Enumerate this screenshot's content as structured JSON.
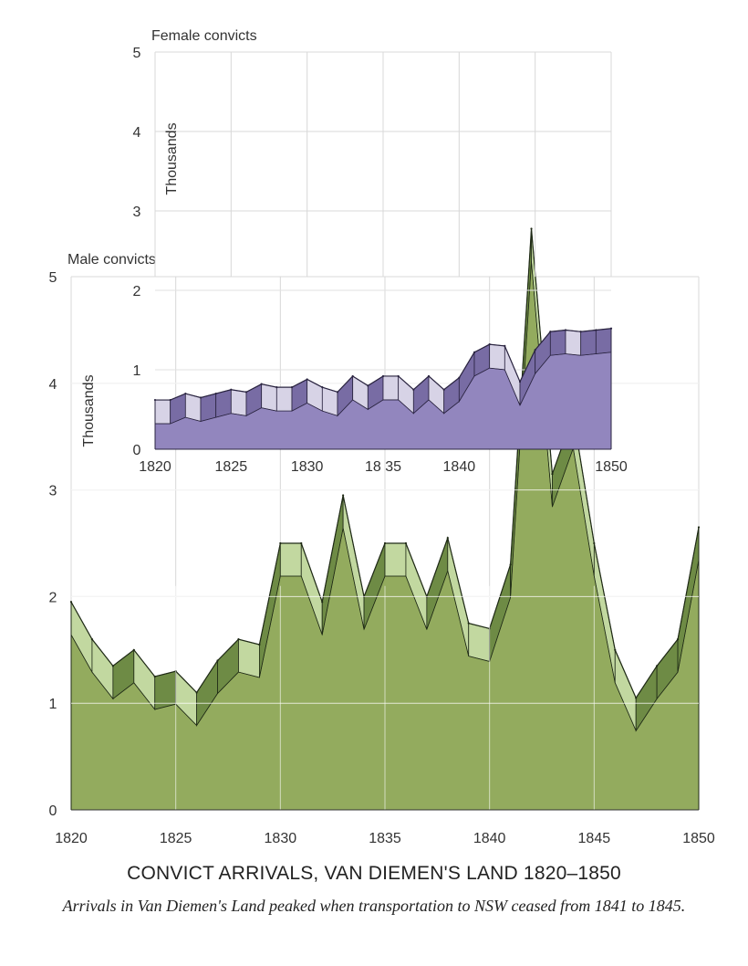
{
  "caption": {
    "title": "CONVICT ARRIVALS, VAN DIEMEN'S LAND 1820–1850",
    "subtitle": "Arrivals in Van Diemen's Land peaked when transportation to NSW ceased from 1841 to 1845."
  },
  "chart_data": [
    {
      "type": "area",
      "title": "Male convicts",
      "ylabel": "Thousands",
      "xlim": [
        1820,
        1850
      ],
      "ylim": [
        0,
        5
      ],
      "x_ticks": [
        "1820",
        "1825",
        "1830",
        "1835",
        "1840",
        "1845",
        "1850"
      ],
      "y_ticks": [
        "0",
        "1",
        "2",
        "3",
        "4",
        "5"
      ],
      "x": [
        1820,
        1821,
        1822,
        1823,
        1824,
        1825,
        1826,
        1827,
        1828,
        1829,
        1830,
        1831,
        1832,
        1833,
        1834,
        1835,
        1836,
        1837,
        1838,
        1839,
        1840,
        1841,
        1842,
        1843,
        1844,
        1845,
        1846,
        1847,
        1848,
        1849,
        1850
      ],
      "values": [
        1.95,
        1.6,
        1.35,
        1.5,
        1.25,
        1.3,
        1.1,
        1.4,
        1.6,
        1.55,
        2.5,
        2.5,
        1.95,
        2.95,
        2.0,
        2.5,
        2.5,
        2.0,
        2.55,
        1.75,
        1.7,
        2.3,
        5.45,
        3.15,
        3.7,
        2.5,
        1.5,
        1.05,
        1.35,
        1.6,
        2.65
      ],
      "colors": {
        "fill": "#93ab5e",
        "band": "#c2d8a0",
        "dark": "#6e8b45",
        "line": "#1f2a16"
      }
    },
    {
      "type": "area",
      "title": "Female convicts",
      "ylabel": "Thousands",
      "xlim": [
        1820,
        1850
      ],
      "ylim": [
        0,
        5
      ],
      "x_ticks": [
        "1820",
        "1825",
        "1830",
        "18 35",
        "1840",
        "1850"
      ],
      "y_ticks": [
        "0",
        "1",
        "2",
        "3",
        "4",
        "5"
      ],
      "x": [
        1820,
        1821,
        1822,
        1823,
        1824,
        1825,
        1826,
        1827,
        1828,
        1829,
        1830,
        1831,
        1832,
        1833,
        1834,
        1835,
        1836,
        1837,
        1838,
        1839,
        1840,
        1841,
        1842,
        1843,
        1844,
        1845,
        1846,
        1847,
        1848,
        1849,
        1850
      ],
      "values": [
        0.62,
        0.62,
        0.7,
        0.65,
        0.7,
        0.75,
        0.72,
        0.82,
        0.78,
        0.78,
        0.88,
        0.78,
        0.72,
        0.92,
        0.8,
        0.92,
        0.92,
        0.75,
        0.92,
        0.75,
        0.9,
        1.22,
        1.32,
        1.3,
        0.85,
        1.25,
        1.48,
        1.5,
        1.48,
        1.5,
        1.52
      ],
      "colors": {
        "fill": "#9286be",
        "band": "#d7d3e6",
        "dark": "#786ca4",
        "line": "#2a2440"
      }
    }
  ]
}
